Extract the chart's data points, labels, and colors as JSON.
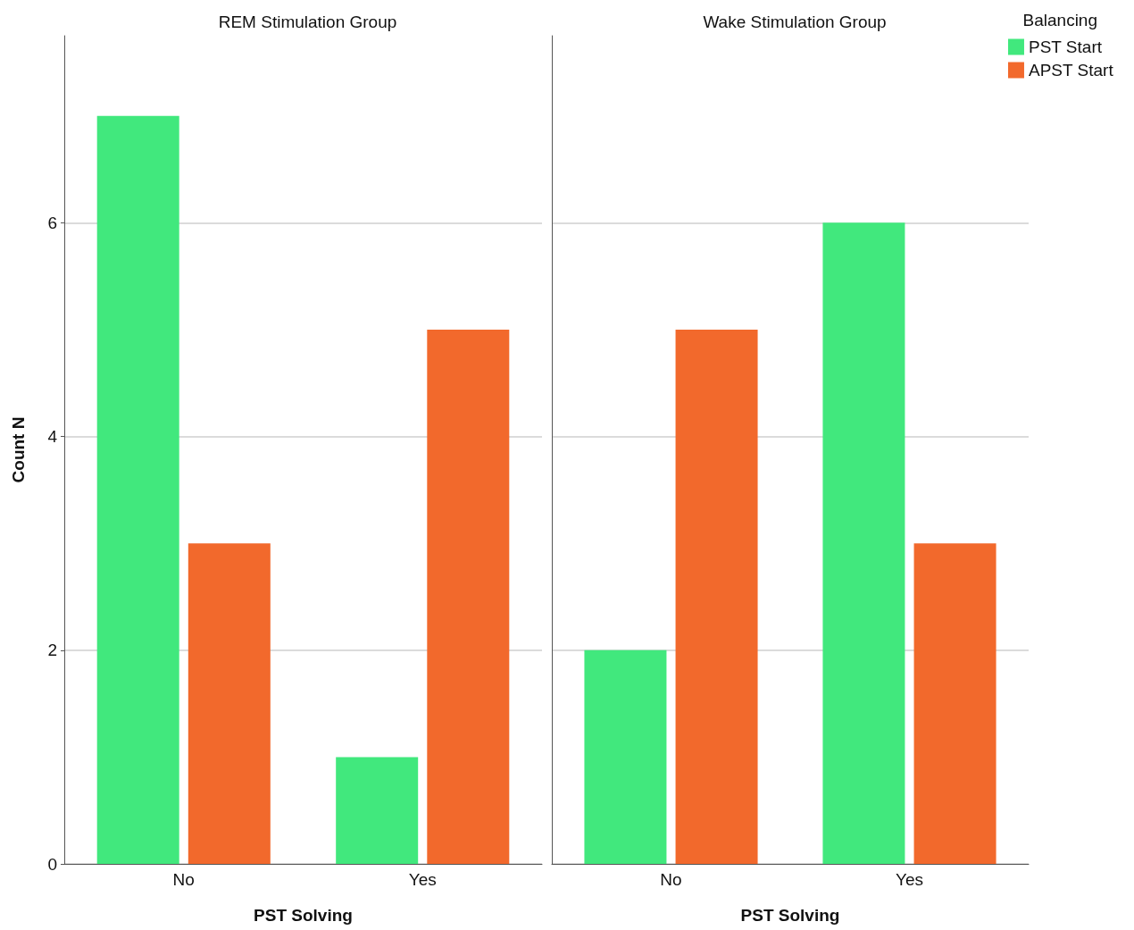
{
  "chart_data": [
    {
      "type": "bar",
      "title": "REM Stimulation Group",
      "xlabel": "PST Solving",
      "ylabel": "Count N",
      "categories": [
        "No",
        "Yes"
      ],
      "series": [
        {
          "color": "#41e87d",
          "values": [
            7,
            1
          ]
        },
        {
          "color": "#f2692c",
          "values": [
            3,
            5
          ]
        }
      ],
      "ylim": [
        0,
        7.75
      ],
      "yticks": [
        0,
        2,
        4,
        6
      ],
      "grid": "y",
      "legend": false
    },
    {
      "type": "bar",
      "title": "Wake Stimulation Group",
      "xlabel": "PST Solving",
      "categories": [
        "No",
        "Yes"
      ],
      "series": [
        {
          "name": "PST Start",
          "color": "#41e87d",
          "values": [
            2,
            6
          ]
        },
        {
          "name": "APST Start",
          "color": "#f2692c",
          "values": [
            5,
            3
          ]
        }
      ],
      "ylim": [
        0,
        7.75
      ],
      "yticks": [
        0,
        2,
        4,
        6
      ],
      "grid": "y",
      "tick_labels": "x",
      "legend": "top right",
      "legend_title": "Balancing"
    }
  ]
}
